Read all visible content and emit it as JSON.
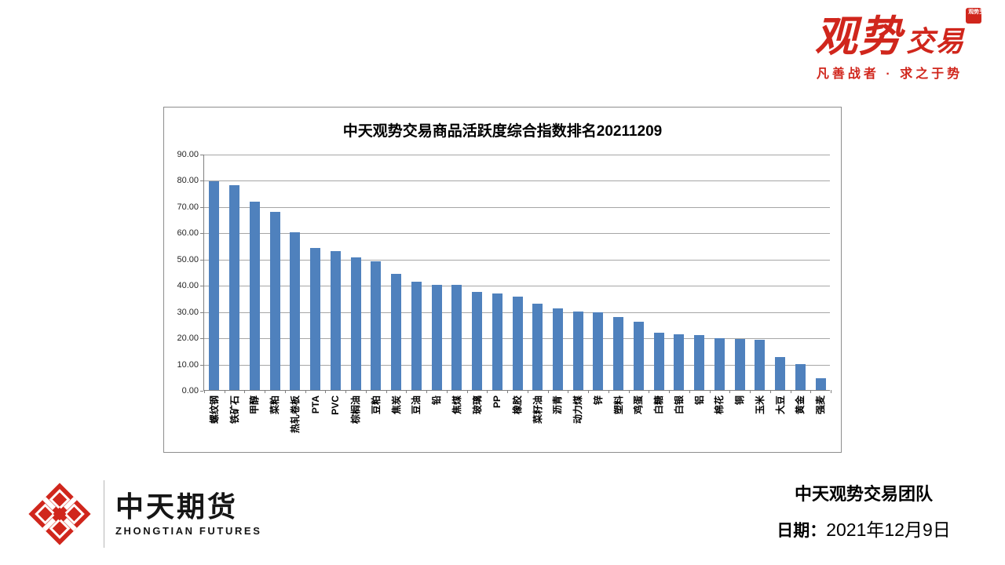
{
  "brand": {
    "logo_primary": "观势",
    "logo_secondary": "交易",
    "seal_text": "观势交易",
    "tagline": "凡善战者 · 求之于势",
    "color": "#d0261c"
  },
  "chart_data": {
    "type": "bar",
    "title": "中天观势交易商品活跃度综合指数排名20211209",
    "categories": [
      "螺纹钢",
      "铁矿石",
      "甲醇",
      "菜粕",
      "热轧卷板",
      "PTA",
      "PVC",
      "棕榈油",
      "豆粕",
      "焦炭",
      "豆油",
      "铅",
      "焦煤",
      "玻璃",
      "PP",
      "橡胶",
      "菜籽油",
      "沥青",
      "动力煤",
      "锌",
      "塑料",
      "鸡蛋",
      "白糖",
      "白银",
      "铝",
      "棉花",
      "铜",
      "玉米",
      "大豆",
      "黄金",
      "强麦"
    ],
    "values": [
      79.5,
      78.0,
      71.7,
      68.0,
      60.0,
      54.1,
      53.0,
      50.4,
      48.9,
      44.3,
      41.3,
      40.2,
      40.0,
      37.4,
      36.8,
      35.5,
      33.0,
      31.2,
      29.8,
      29.7,
      27.8,
      26.0,
      21.9,
      21.2,
      20.9,
      19.8,
      19.3,
      19.0,
      12.6,
      9.9,
      4.5
    ],
    "xlabel": "",
    "ylabel": "",
    "ylim": [
      0,
      90
    ],
    "ytick_step": 10,
    "ytick_labels": [
      "90.00",
      "80.00",
      "70.00",
      "60.00",
      "50.00",
      "40.00",
      "30.00",
      "20.00",
      "10.00",
      "0.00"
    ],
    "grid": true,
    "legend": "none",
    "bar_color": "#4f81bd",
    "gridline_color": "#a6a6a6",
    "axis_color": "#808080"
  },
  "footer": {
    "company_cn": "中天期货",
    "company_en": "ZHONGTIAN FUTURES",
    "team": "中天观势交易团队",
    "date_label": "日期：",
    "date_value": "2021年12月9日"
  }
}
